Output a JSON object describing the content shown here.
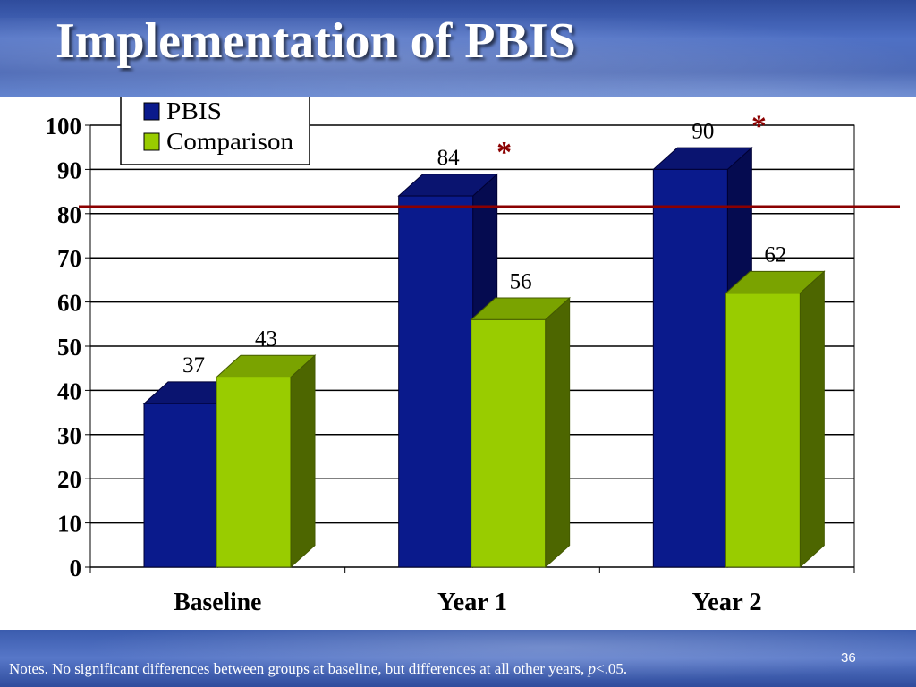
{
  "slide": {
    "title": "Implementation of PBIS",
    "notes_prefix": "Notes. No significant differences between groups at baseline, but differences at all other years, ",
    "notes_p": "p",
    "notes_suffix": "<.05.",
    "slide_number": "36"
  },
  "colors": {
    "pbis": "#0a1a8c",
    "pbis_top": "#0a1470",
    "pbis_side": "#050b50",
    "comparison": "#99cc00",
    "comparison_top": "#7aa300",
    "comparison_side": "#4d6600",
    "reference_line": "#8b0000",
    "significance": "#8b0000"
  },
  "chart_data": {
    "type": "bar",
    "categories": [
      "Baseline",
      "Year 1",
      "Year 2"
    ],
    "series": [
      {
        "name": "PBIS",
        "values": [
          37,
          84,
          90
        ]
      },
      {
        "name": "Comparison",
        "values": [
          43,
          56,
          62
        ]
      }
    ],
    "ylim": [
      0,
      100
    ],
    "yticks": [
      "0",
      "10",
      "20",
      "30",
      "40",
      "50",
      "60",
      "70",
      "80",
      "90",
      "100"
    ],
    "data_labels": [
      [
        "37",
        "84",
        "90"
      ],
      [
        "43",
        "56",
        "62"
      ]
    ],
    "significance_marker": "*",
    "significant_categories": [
      1,
      2
    ],
    "reference_line_value": 80,
    "legend_position": "top-left",
    "grid": true,
    "three_d": true
  }
}
